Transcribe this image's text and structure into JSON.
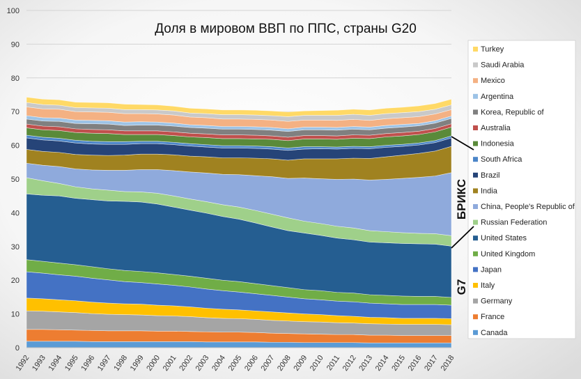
{
  "chart_data": {
    "type": "area",
    "stacked": true,
    "title": "Доля в мировом ВВП по ППС, страны G20",
    "xlabel": "",
    "ylabel": "",
    "ylim": [
      0,
      100
    ],
    "yticks": [
      0,
      10,
      20,
      30,
      40,
      50,
      60,
      70,
      80,
      90,
      100
    ],
    "grid": true,
    "legend_position": "right",
    "x": [
      "1992",
      "1993",
      "1994",
      "1995",
      "1996",
      "1997",
      "1998",
      "1999",
      "2000",
      "2001",
      "2002",
      "2003",
      "2004",
      "2005",
      "2006",
      "2007",
      "2008",
      "2009",
      "2010",
      "2011",
      "2012",
      "2013",
      "2014",
      "2015",
      "2016",
      "2017",
      "2018"
    ],
    "series": [
      {
        "name": "Canada",
        "color": "#5b9bd5",
        "values": [
          1.9,
          1.9,
          1.9,
          1.9,
          1.8,
          1.8,
          1.8,
          1.8,
          1.8,
          1.8,
          1.8,
          1.7,
          1.7,
          1.7,
          1.7,
          1.6,
          1.6,
          1.5,
          1.5,
          1.5,
          1.5,
          1.4,
          1.4,
          1.4,
          1.4,
          1.4,
          1.4
        ]
      },
      {
        "name": "France",
        "color": "#ed7d31",
        "values": [
          3.5,
          3.5,
          3.4,
          3.3,
          3.3,
          3.2,
          3.2,
          3.2,
          3.1,
          3.1,
          3.0,
          3.0,
          2.9,
          2.9,
          2.8,
          2.7,
          2.6,
          2.6,
          2.5,
          2.4,
          2.4,
          2.3,
          2.3,
          2.2,
          2.2,
          2.2,
          2.2
        ]
      },
      {
        "name": "Germany",
        "color": "#a5a5a5",
        "values": [
          5.5,
          5.4,
          5.3,
          5.2,
          5.0,
          4.9,
          4.8,
          4.7,
          4.6,
          4.5,
          4.4,
          4.2,
          4.1,
          4.0,
          3.9,
          3.8,
          3.7,
          3.6,
          3.6,
          3.5,
          3.4,
          3.4,
          3.3,
          3.3,
          3.3,
          3.3,
          3.2
        ]
      },
      {
        "name": "Italy",
        "color": "#ffc000",
        "values": [
          3.8,
          3.7,
          3.6,
          3.5,
          3.4,
          3.3,
          3.2,
          3.2,
          3.1,
          3.0,
          2.9,
          2.8,
          2.7,
          2.6,
          2.5,
          2.5,
          2.4,
          2.3,
          2.2,
          2.1,
          2.0,
          1.9,
          1.9,
          1.8,
          1.8,
          1.8,
          1.8
        ]
      },
      {
        "name": "Japan",
        "color": "#4472c4",
        "values": [
          7.8,
          7.6,
          7.4,
          7.3,
          7.1,
          6.9,
          6.6,
          6.4,
          6.3,
          6.1,
          5.9,
          5.7,
          5.5,
          5.3,
          5.1,
          4.9,
          4.7,
          4.5,
          4.4,
          4.3,
          4.3,
          4.2,
          4.1,
          4.1,
          4.1,
          4.1,
          4.0
        ]
      },
      {
        "name": "United Kingdom",
        "color": "#70ad47",
        "values": [
          3.6,
          3.5,
          3.5,
          3.4,
          3.4,
          3.3,
          3.3,
          3.3,
          3.3,
          3.2,
          3.2,
          3.2,
          3.1,
          3.1,
          3.0,
          2.9,
          2.8,
          2.7,
          2.7,
          2.6,
          2.6,
          2.5,
          2.5,
          2.5,
          2.4,
          2.4,
          2.3
        ]
      },
      {
        "name": "United States",
        "color": "#255e91",
        "values": [
          19.5,
          19.6,
          19.9,
          19.7,
          19.9,
          20.1,
          20.5,
          20.6,
          20.4,
          20.0,
          19.6,
          19.3,
          18.9,
          18.5,
          18.0,
          17.4,
          16.9,
          16.8,
          16.4,
          16.1,
          15.8,
          15.6,
          15.6,
          15.6,
          15.6,
          15.5,
          15.2
        ]
      },
      {
        "name": "Russian Federation",
        "color": "#9fd08a",
        "values": [
          4.8,
          4.3,
          3.7,
          3.4,
          3.2,
          3.2,
          2.9,
          3.0,
          3.2,
          3.3,
          3.3,
          3.4,
          3.5,
          3.6,
          3.7,
          3.8,
          3.8,
          3.5,
          3.5,
          3.5,
          3.5,
          3.4,
          3.3,
          3.2,
          3.1,
          3.1,
          3.1
        ]
      },
      {
        "name": "China, People's Republic of",
        "color": "#8faadc",
        "values": [
          4.3,
          4.6,
          5.0,
          5.3,
          5.6,
          5.9,
          6.3,
          6.6,
          7.0,
          7.5,
          8.0,
          8.5,
          9.0,
          9.6,
          10.3,
          11.1,
          11.7,
          12.8,
          13.3,
          13.9,
          14.5,
          15.0,
          15.5,
          16.1,
          16.6,
          17.1,
          18.7
        ]
      },
      {
        "name": "India",
        "color": "#a08220",
        "values": [
          4.1,
          4.1,
          4.2,
          4.3,
          4.4,
          4.4,
          4.5,
          4.6,
          4.6,
          4.7,
          4.7,
          4.8,
          4.9,
          5.0,
          5.2,
          5.3,
          5.4,
          5.7,
          5.9,
          6.1,
          6.2,
          6.4,
          6.7,
          6.9,
          7.1,
          7.4,
          7.8
        ]
      },
      {
        "name": "Brazil",
        "color": "#264478",
        "values": [
          3.4,
          3.4,
          3.4,
          3.4,
          3.3,
          3.3,
          3.2,
          3.1,
          3.1,
          3.0,
          3.0,
          2.9,
          2.9,
          2.9,
          2.9,
          2.9,
          2.9,
          2.9,
          3.0,
          2.9,
          2.9,
          2.9,
          2.8,
          2.6,
          2.5,
          2.5,
          2.5
        ]
      },
      {
        "name": "South Africa",
        "color": "#4b85c8",
        "values": [
          0.8,
          0.8,
          0.8,
          0.8,
          0.8,
          0.8,
          0.8,
          0.7,
          0.7,
          0.7,
          0.7,
          0.7,
          0.7,
          0.7,
          0.7,
          0.7,
          0.7,
          0.7,
          0.6,
          0.6,
          0.6,
          0.6,
          0.6,
          0.6,
          0.6,
          0.6,
          0.6
        ]
      },
      {
        "name": "Indonesia",
        "color": "#5a8a3a",
        "values": [
          2.2,
          2.2,
          2.3,
          2.3,
          2.4,
          2.4,
          2.1,
          2.0,
          2.0,
          2.0,
          2.0,
          2.1,
          2.1,
          2.1,
          2.1,
          2.2,
          2.2,
          2.3,
          2.3,
          2.3,
          2.4,
          2.4,
          2.5,
          2.5,
          2.5,
          2.6,
          2.6
        ]
      },
      {
        "name": "Australia",
        "color": "#c0504d",
        "values": [
          1.1,
          1.1,
          1.1,
          1.1,
          1.1,
          1.1,
          1.1,
          1.1,
          1.1,
          1.1,
          1.1,
          1.1,
          1.1,
          1.1,
          1.1,
          1.0,
          1.0,
          1.0,
          1.0,
          1.0,
          1.0,
          1.0,
          1.0,
          1.0,
          1.0,
          1.0,
          1.0
        ]
      },
      {
        "name": "Korea, Republic of",
        "color": "#808080",
        "values": [
          1.5,
          1.5,
          1.6,
          1.6,
          1.7,
          1.7,
          1.6,
          1.7,
          1.7,
          1.7,
          1.7,
          1.7,
          1.7,
          1.7,
          1.7,
          1.7,
          1.7,
          1.7,
          1.7,
          1.7,
          1.7,
          1.6,
          1.6,
          1.6,
          1.6,
          1.6,
          1.6
        ]
      },
      {
        "name": "Argentina",
        "color": "#9dc3e6",
        "values": [
          1.0,
          1.0,
          1.0,
          1.0,
          1.0,
          1.0,
          1.0,
          1.0,
          0.9,
          0.9,
          0.8,
          0.8,
          0.8,
          0.8,
          0.8,
          0.8,
          0.8,
          0.8,
          0.8,
          0.8,
          0.8,
          0.8,
          0.8,
          0.8,
          0.7,
          0.7,
          0.7
        ]
      },
      {
        "name": "Mexico",
        "color": "#f4b183",
        "values": [
          2.6,
          2.6,
          2.6,
          2.5,
          2.5,
          2.5,
          2.5,
          2.4,
          2.4,
          2.4,
          2.3,
          2.3,
          2.2,
          2.2,
          2.2,
          2.2,
          2.2,
          2.1,
          2.1,
          2.1,
          2.1,
          2.0,
          2.0,
          2.0,
          2.0,
          2.0,
          1.9
        ]
      },
      {
        "name": "Saudi Arabia",
        "color": "#c9c9c9",
        "values": [
          1.3,
          1.3,
          1.2,
          1.2,
          1.2,
          1.2,
          1.2,
          1.2,
          1.2,
          1.2,
          1.2,
          1.2,
          1.3,
          1.3,
          1.3,
          1.3,
          1.4,
          1.4,
          1.4,
          1.5,
          1.5,
          1.5,
          1.5,
          1.5,
          1.5,
          1.4,
          1.4
        ]
      },
      {
        "name": "Turkey",
        "color": "#ffd966",
        "values": [
          1.6,
          1.6,
          1.6,
          1.6,
          1.6,
          1.6,
          1.6,
          1.5,
          1.5,
          1.4,
          1.4,
          1.4,
          1.4,
          1.4,
          1.4,
          1.4,
          1.4,
          1.3,
          1.4,
          1.5,
          1.5,
          1.6,
          1.6,
          1.6,
          1.7,
          1.7,
          1.7
        ]
      }
    ],
    "group_labels": {
      "brics": "БРИКС",
      "g7": "G7"
    }
  }
}
